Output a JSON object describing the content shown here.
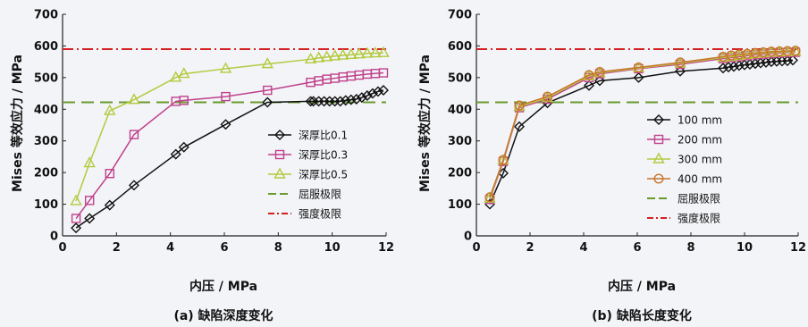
{
  "chart_data": [
    {
      "type": "line",
      "caption": "(a) 缺陷深度变化",
      "xlabel": "内压 / MPa",
      "ylabel": "Mises 等效应力 / MPa",
      "xlim": [
        0,
        12
      ],
      "ylim": [
        0,
        700
      ],
      "xticks": [
        0,
        2,
        4,
        6,
        8,
        10,
        12
      ],
      "yticks": [
        0,
        100,
        200,
        300,
        400,
        500,
        600,
        700
      ],
      "legend_position": "center-right",
      "series": [
        {
          "name": "深厚比0.1",
          "color": "#111111",
          "marker": "diamond",
          "x": [
            0.5,
            1.0,
            1.75,
            2.65,
            4.2,
            4.5,
            6.05,
            7.6,
            9.2,
            9.3,
            9.5,
            9.7,
            9.9,
            10.1,
            10.3,
            10.5,
            10.7,
            10.9,
            11.1,
            11.3,
            11.5,
            11.7,
            11.9
          ],
          "y": [
            25,
            55,
            97,
            160,
            258,
            280,
            352,
            422,
            425,
            425,
            425,
            425,
            425,
            425,
            425,
            428,
            430,
            432,
            437,
            443,
            450,
            456,
            460
          ]
        },
        {
          "name": "深厚比0.3",
          "color": "#c0408c",
          "marker": "square",
          "x": [
            0.5,
            1.0,
            1.75,
            2.65,
            4.2,
            4.5,
            6.05,
            7.6,
            9.2,
            9.5,
            9.8,
            10.1,
            10.4,
            10.7,
            11.0,
            11.3,
            11.6,
            11.9
          ],
          "y": [
            55,
            112,
            197,
            320,
            425,
            428,
            440,
            460,
            485,
            490,
            495,
            498,
            502,
            505,
            508,
            511,
            513,
            515
          ]
        },
        {
          "name": "深厚比0.5",
          "color": "#b5c93f",
          "marker": "triangle",
          "x": [
            0.5,
            1.0,
            1.75,
            2.65,
            4.2,
            4.5,
            6.05,
            7.6,
            9.2,
            9.5,
            9.8,
            10.1,
            10.4,
            10.7,
            11.0,
            11.3,
            11.6,
            11.9
          ],
          "y": [
            110,
            230,
            395,
            430,
            500,
            512,
            528,
            543,
            558,
            562,
            565,
            568,
            570,
            572,
            574,
            576,
            577,
            578
          ]
        }
      ],
      "reference_lines": [
        {
          "name": "屈服极限",
          "value": 422,
          "color": "#6b9a2c",
          "style": "dashed"
        },
        {
          "name": "强度极限",
          "value": 590,
          "color": "#d42020",
          "style": "dash-dot"
        }
      ]
    },
    {
      "type": "line",
      "caption": "(b) 缺陷长度变化",
      "xlabel": "内压 / MPa",
      "ylabel": "Mises 等效应力 / MPa",
      "xlim": [
        0,
        12
      ],
      "ylim": [
        0,
        700
      ],
      "xticks": [
        0,
        2,
        4,
        6,
        8,
        10,
        12
      ],
      "yticks": [
        0,
        100,
        200,
        300,
        400,
        500,
        600,
        700
      ],
      "legend_position": "center-right",
      "series": [
        {
          "name": "100 mm",
          "color": "#111111",
          "marker": "diamond",
          "x": [
            0.5,
            1.0,
            1.6,
            2.65,
            4.2,
            4.6,
            6.05,
            7.6,
            9.2,
            9.4,
            9.6,
            9.8,
            10.0,
            10.2,
            10.4,
            10.6,
            10.8,
            11.0,
            11.2,
            11.4,
            11.6,
            11.8
          ],
          "y": [
            100,
            198,
            345,
            420,
            475,
            490,
            500,
            520,
            530,
            533,
            535,
            538,
            540,
            542,
            544,
            546,
            548,
            550,
            551,
            552,
            553,
            555
          ]
        },
        {
          "name": "200 mm",
          "color": "#c0408c",
          "marker": "square",
          "x": [
            0.5,
            1.0,
            1.6,
            2.65,
            4.2,
            4.6,
            6.05,
            7.6,
            9.2,
            9.5,
            9.8,
            10.1,
            10.4,
            10.7,
            11.0,
            11.3,
            11.6,
            11.9
          ],
          "y": [
            115,
            235,
            405,
            432,
            500,
            512,
            528,
            542,
            560,
            563,
            566,
            569,
            572,
            574,
            576,
            578,
            579,
            580
          ]
        },
        {
          "name": "300 mm",
          "color": "#b5c93f",
          "marker": "triangle",
          "x": [
            0.5,
            1.0,
            1.6,
            2.65,
            4.2,
            4.6,
            6.05,
            7.6,
            9.2,
            9.5,
            9.8,
            10.1,
            10.4,
            10.7,
            11.0,
            11.3,
            11.6,
            11.9
          ],
          "y": [
            118,
            238,
            408,
            436,
            505,
            515,
            530,
            545,
            563,
            566,
            569,
            572,
            575,
            577,
            579,
            580,
            581,
            582
          ]
        },
        {
          "name": "400 mm",
          "color": "#c8742c",
          "marker": "circle",
          "x": [
            0.5,
            1.0,
            1.6,
            2.65,
            4.2,
            4.6,
            6.05,
            7.6,
            9.2,
            9.5,
            9.8,
            10.1,
            10.4,
            10.7,
            11.0,
            11.3,
            11.6,
            11.9
          ],
          "y": [
            122,
            240,
            412,
            440,
            508,
            518,
            532,
            548,
            566,
            570,
            573,
            575,
            578,
            580,
            582,
            583,
            584,
            585
          ]
        }
      ],
      "reference_lines": [
        {
          "name": "屈服极限",
          "value": 422,
          "color": "#6b9a2c",
          "style": "dashed"
        },
        {
          "name": "强度极限",
          "value": 590,
          "color": "#d42020",
          "style": "dash-dot"
        }
      ]
    }
  ]
}
